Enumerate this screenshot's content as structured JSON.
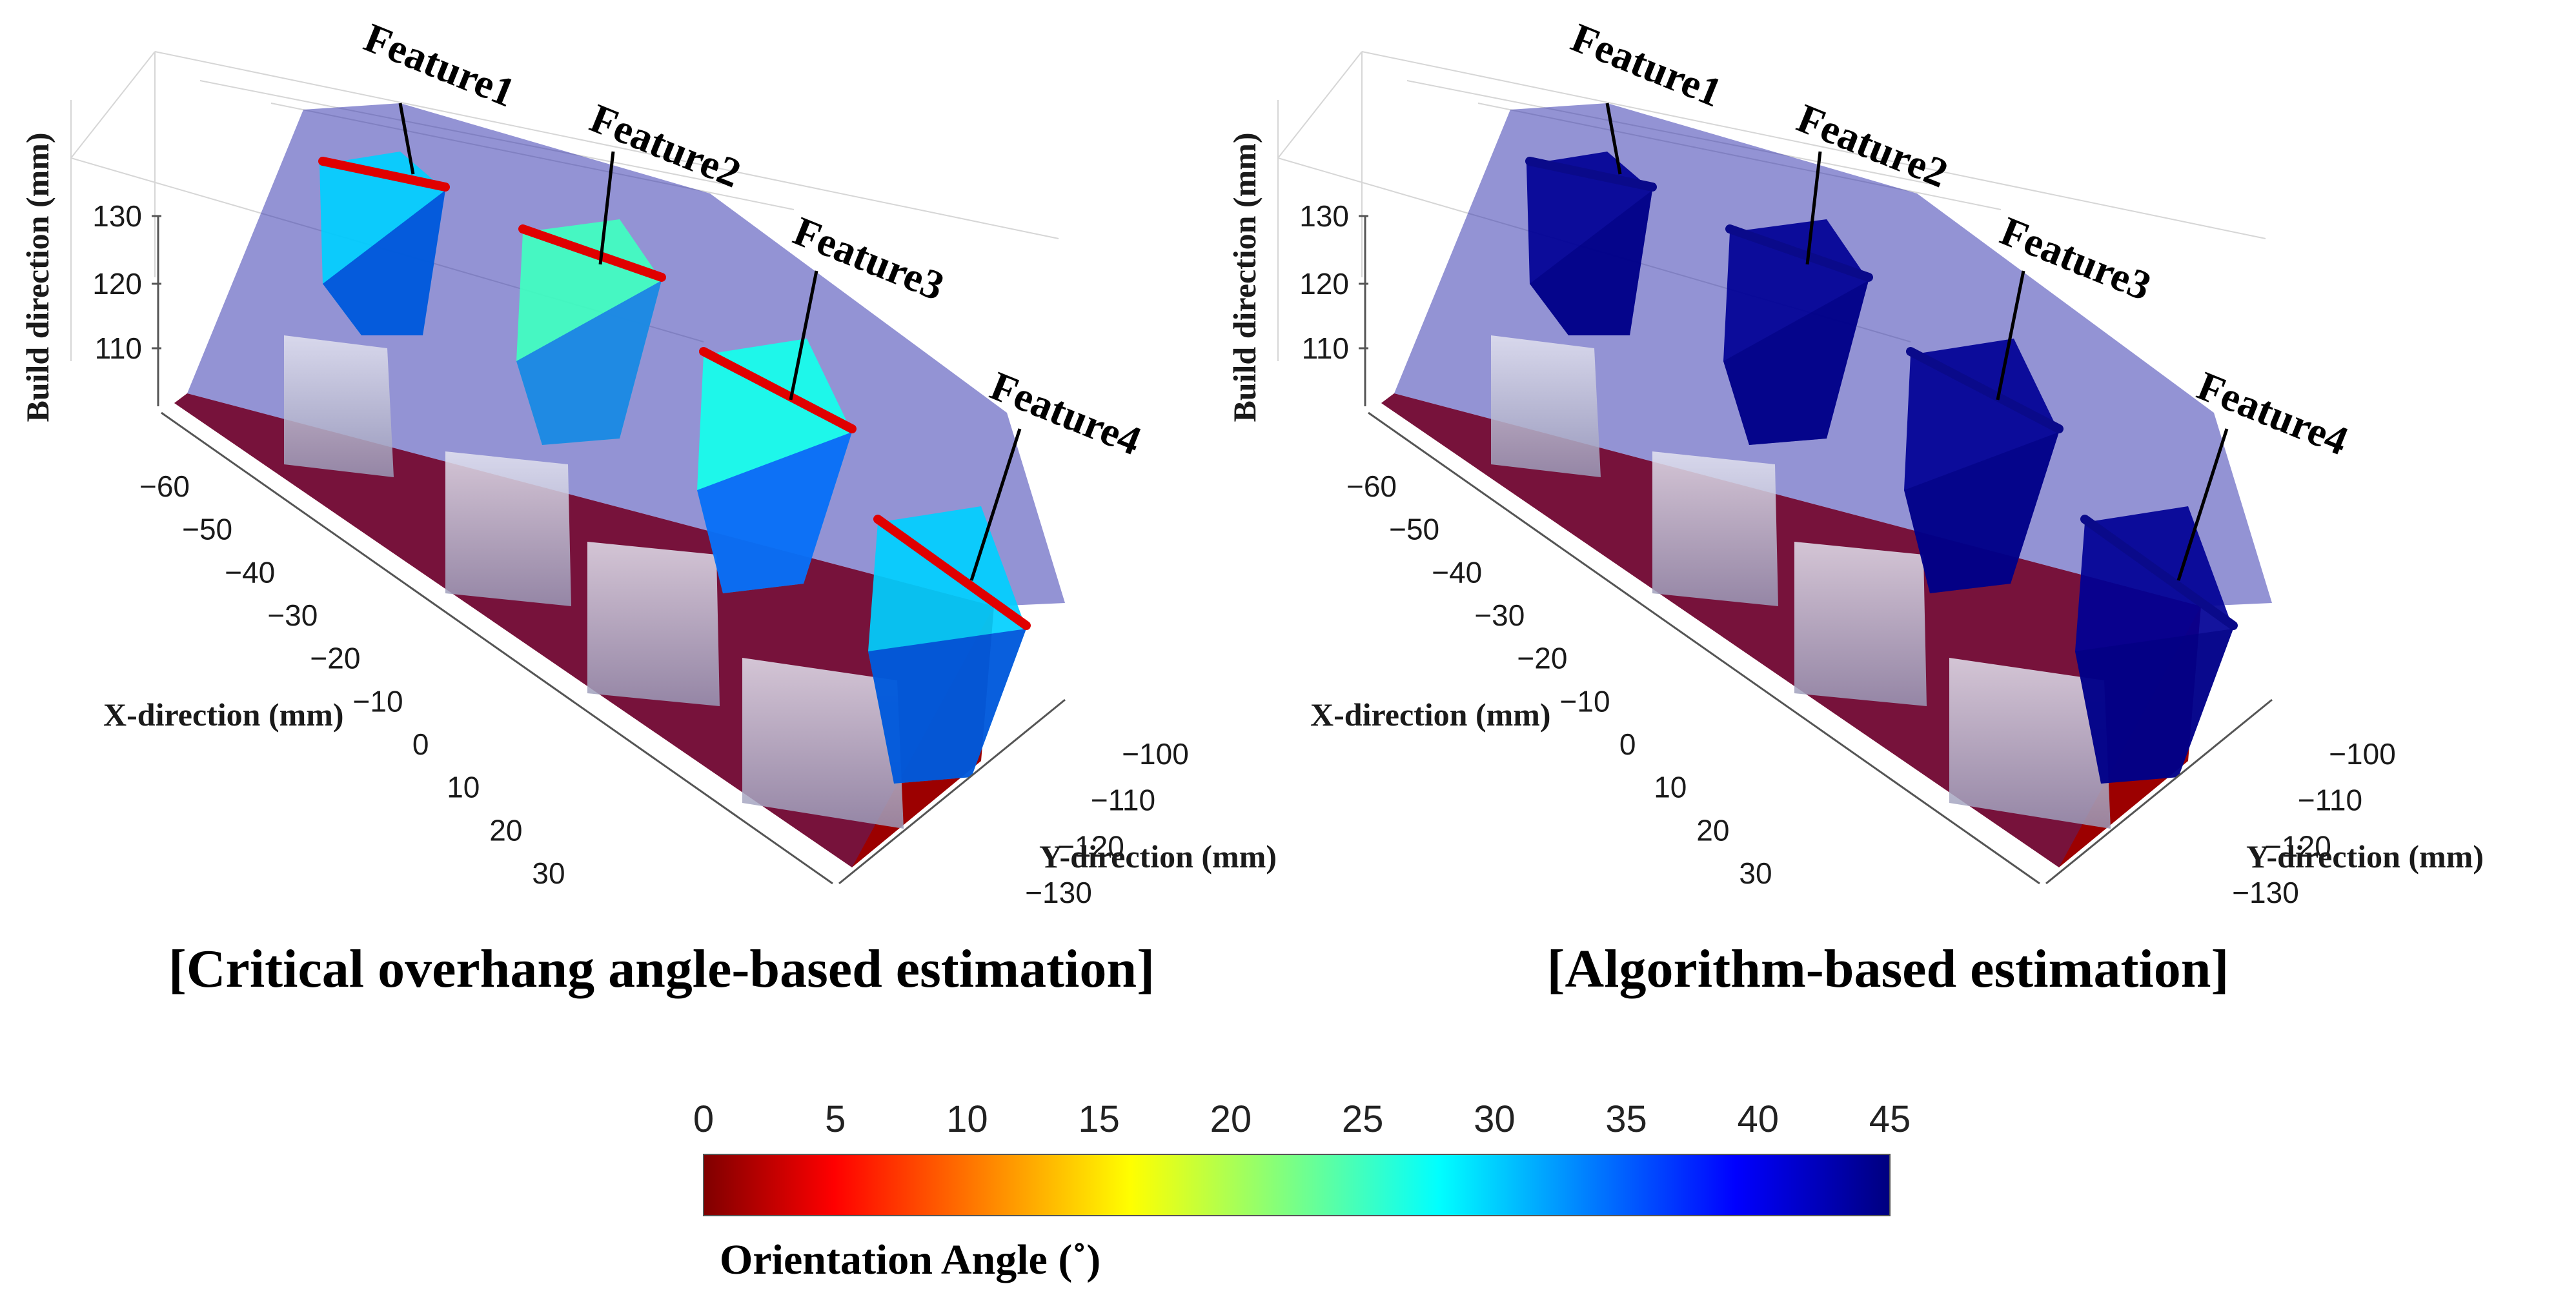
{
  "chart_data": [
    {
      "type": "3d-surface",
      "title": "[Critical overhang angle-based estimation]",
      "xlabel": "X-direction (mm)",
      "ylabel": "Y-direction (mm)",
      "zlabel": "Build direction (mm)",
      "x_ticks": [
        "−60",
        "−50",
        "−40",
        "−30",
        "−20",
        "−10",
        "0",
        "10",
        "20",
        "30"
      ],
      "y_ticks": [
        "−100",
        "−110",
        "−120",
        "−130"
      ],
      "z_ticks": [
        "130",
        "120",
        "110"
      ],
      "features": [
        {
          "label": "Feature1",
          "estimated_orientation_angle": 30
        },
        {
          "label": "Feature2",
          "estimated_orientation_angle": 25
        },
        {
          "label": "Feature3",
          "estimated_orientation_angle": 27
        },
        {
          "label": "Feature4",
          "estimated_orientation_angle": 30
        }
      ]
    },
    {
      "type": "3d-surface",
      "title": "[Algorithm-based estimation]",
      "xlabel": "X-direction (mm)",
      "ylabel": "Y-direction (mm)",
      "zlabel": "Build direction (mm)",
      "x_ticks": [
        "−60",
        "−50",
        "−40",
        "−30",
        "−20",
        "−10",
        "0",
        "10",
        "20",
        "30"
      ],
      "y_ticks": [
        "−100",
        "−110",
        "−120",
        "−130"
      ],
      "z_ticks": [
        "130",
        "120",
        "110"
      ],
      "features": [
        {
          "label": "Feature1",
          "estimated_orientation_angle": 44
        },
        {
          "label": "Feature2",
          "estimated_orientation_angle": 44
        },
        {
          "label": "Feature3",
          "estimated_orientation_angle": 44
        },
        {
          "label": "Feature4",
          "estimated_orientation_angle": 44
        }
      ]
    }
  ],
  "colorbar": {
    "label": "Orientation Angle (˚)",
    "range": [
      0,
      45
    ],
    "ticks": [
      "0",
      "5",
      "10",
      "15",
      "20",
      "25",
      "30",
      "35",
      "40",
      "45"
    ],
    "colormap": "jet-reversed",
    "colors": [
      "#7f0000",
      "#ff0000",
      "#ffff00",
      "#00ffff",
      "#0000ff",
      "#00007f"
    ]
  }
}
